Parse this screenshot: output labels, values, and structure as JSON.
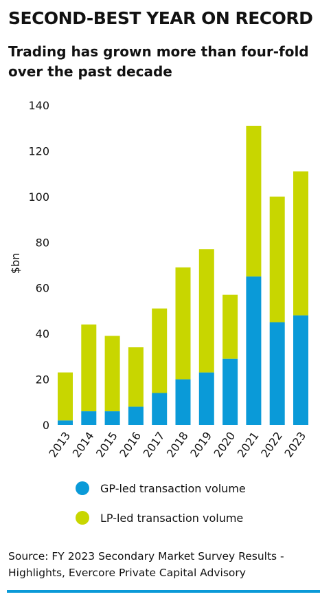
{
  "title": "SECOND-BEST YEAR ON RECORD",
  "subtitle": "Trading has grown more than four-fold over the past decade",
  "colors": {
    "gp": "#0a9ad8",
    "lp": "#c8d600",
    "rule": "#0a9ad8"
  },
  "chart_data": {
    "type": "bar",
    "stacked": true,
    "categories": [
      "2013",
      "2014",
      "2015",
      "2016",
      "2017",
      "2018",
      "2019",
      "2020",
      "2021",
      "2022",
      "2023"
    ],
    "series": [
      {
        "name": "GP-led transaction volume",
        "values": [
          2,
          6,
          6,
          8,
          14,
          20,
          23,
          29,
          65,
          45,
          48
        ]
      },
      {
        "name": "LP-led transaction volume",
        "values": [
          21,
          38,
          33,
          26,
          37,
          49,
          54,
          28,
          66,
          55,
          63
        ]
      }
    ],
    "ylabel": "$bn",
    "ylim": [
      0,
      140
    ],
    "yticks": [
      0,
      20,
      40,
      60,
      80,
      100,
      120,
      140
    ],
    "grid": false
  },
  "legend": {
    "gp_label": "GP-led transaction volume",
    "lp_label": "LP-led transaction volume"
  },
  "source": "Source: FY 2023 Secondary Market Survey Results - Highlights, Evercore Private Capital Advisory"
}
